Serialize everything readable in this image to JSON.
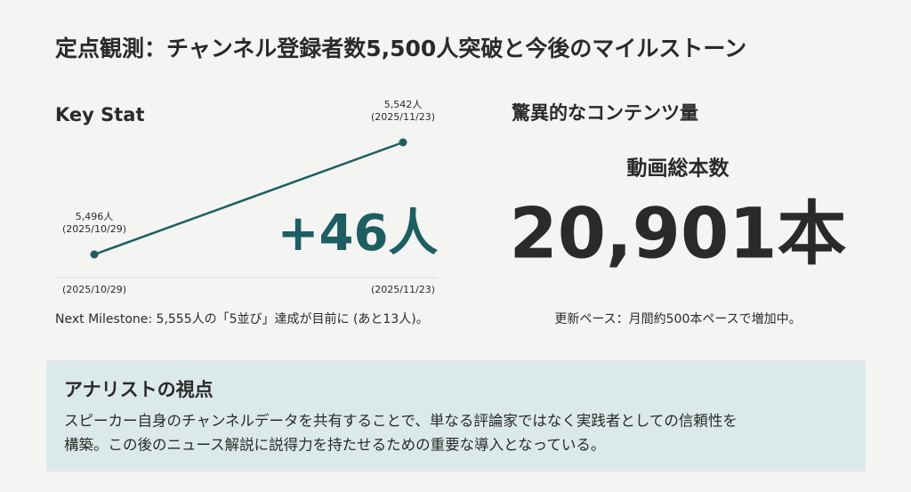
{
  "title": "定点観測：チャンネル登録者数5,500人突破と今後のマイルストーン",
  "key_stat": {
    "heading": "Key Stat",
    "chart": {
      "type": "line",
      "x": [
        "(2025/10/29)",
        "(2025/11/23)"
      ],
      "values": [
        5496,
        5542
      ],
      "value_labels": [
        "5,496人",
        "5,542人"
      ],
      "color": "#1d5e63"
    },
    "delta": "+46人",
    "note": "Next Milestone: 5,555人の「5並び」達成が目前に (あと13人)。"
  },
  "content": {
    "heading": "驚異的なコンテンツ量",
    "label": "動画総本数",
    "value": "20,901本",
    "note": "更新ペース：月間約500本ペースで増加中。"
  },
  "analyst": {
    "heading": "アナリストの視点",
    "lines": [
      "スピーカー自身のチャンネルデータを共有することで、単なる評論家ではなく実践者としての信頼性を",
      "構築。この後のニュース解説に説得力を持たせるための重要な導入となっている。"
    ]
  }
}
